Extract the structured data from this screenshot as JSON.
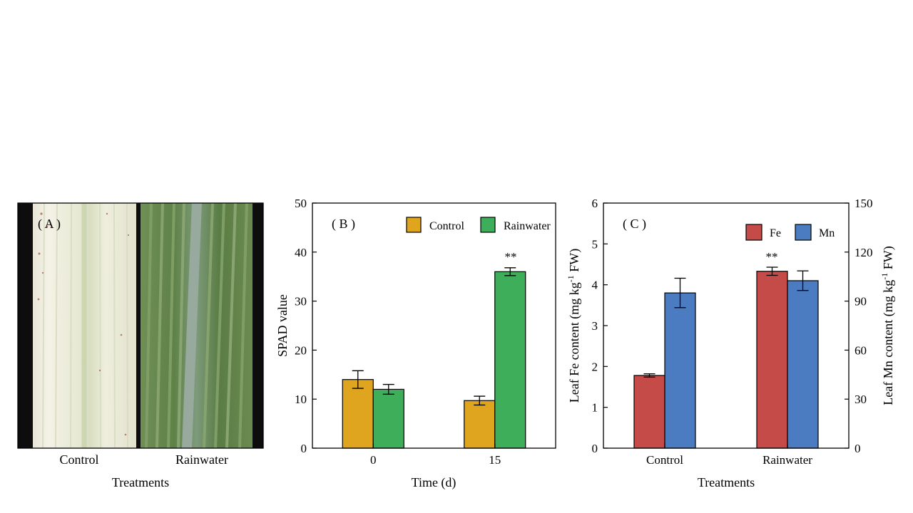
{
  "panels": {
    "a": {
      "label": "( A )",
      "categories": [
        "Control",
        "Rainwater"
      ],
      "xlabel": "Treatments"
    }
  },
  "colors": {
    "control": "#E0A51F",
    "rainwater": "#3FAE5A",
    "fe": "#C44B47",
    "mn": "#4B7CC1"
  },
  "chart_data": [
    {
      "type": "bar",
      "panel_label": "( B )",
      "categories": [
        "0",
        "15"
      ],
      "series": [
        {
          "name": "Control",
          "values": [
            14.0,
            9.7
          ],
          "errors": [
            1.8,
            0.9
          ],
          "color": "#E0A51F"
        },
        {
          "name": "Rainwater",
          "values": [
            12.0,
            36.0
          ],
          "errors": [
            1.0,
            0.8
          ],
          "color": "#3FAE5A"
        }
      ],
      "annotations": [
        {
          "category": "15",
          "series": "Rainwater",
          "text": "**"
        }
      ],
      "xlabel": "Time (d)",
      "ylabel": "SPAD value",
      "ylim": [
        0,
        50
      ],
      "yticks": [
        "0",
        "10",
        "20",
        "30",
        "40",
        "50"
      ],
      "legend": "top-right"
    },
    {
      "type": "bar",
      "panel_label": "( C )",
      "categories": [
        "Control",
        "Rainwater"
      ],
      "series": [
        {
          "name": "Fe",
          "axis": "left",
          "values": [
            1.78,
            4.33
          ],
          "errors": [
            0.04,
            0.1
          ],
          "color": "#C44B47"
        },
        {
          "name": "Mn",
          "axis": "right",
          "values": [
            95,
            102.5
          ],
          "errors": [
            9,
            6
          ],
          "color": "#4B7CC1"
        }
      ],
      "annotations": [
        {
          "category": "Rainwater",
          "series": "Fe",
          "text": "**"
        }
      ],
      "xlabel": "Treatments",
      "ylabel": "Leaf Fe content (mg kg-1 FW)",
      "ylabel_right": "Leaf Mn content (mg kg-1 FW)",
      "ylabel_parts": [
        "Leaf Fe content (mg kg",
        "-1",
        " FW)"
      ],
      "ylabel_right_parts": [
        "Leaf Mn content (mg kg",
        "-1",
        " FW)"
      ],
      "ylim": [
        0,
        6
      ],
      "ylim_right": [
        0,
        150
      ],
      "yticks": [
        "0",
        "1",
        "2",
        "3",
        "4",
        "5",
        "6"
      ],
      "yticks_right": [
        "0",
        "30",
        "60",
        "90",
        "120",
        "150"
      ],
      "legend": "top-right"
    }
  ]
}
